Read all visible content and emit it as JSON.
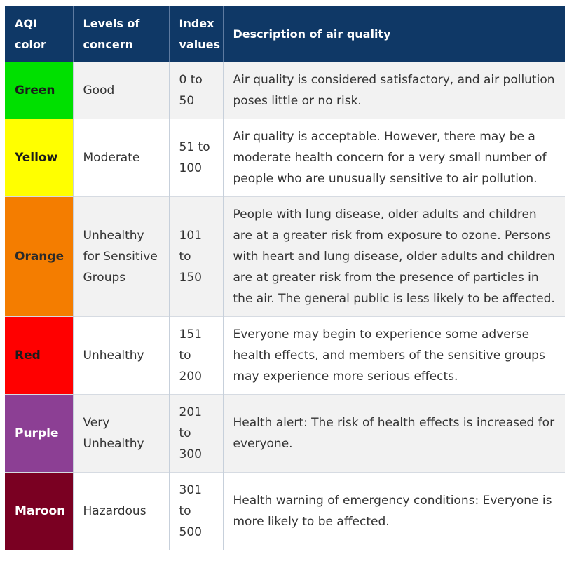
{
  "header": {
    "aqi_color": "AQI color",
    "levels": "Levels of concern",
    "index": "Index values",
    "description": "Description of air quality"
  },
  "rows": [
    {
      "color": "Green",
      "bg": "#00e000",
      "fg": "#1b1b1b",
      "level": "Good",
      "index": "0 to 50",
      "description": "Air quality is considered satisfactory, and air pollution poses little or no risk."
    },
    {
      "color": "Yellow",
      "bg": "#ffff00",
      "fg": "#1b1b1b",
      "level": "Moderate",
      "index": "51 to 100",
      "description": "Air quality is acceptable. However, there may be a moderate health concern for a very small number of people who are unusually sensitive to air pollution."
    },
    {
      "color": "Orange",
      "bg": "#f47d00",
      "fg": "#2a2a2a",
      "level": "Unhealthy for Sensitive Groups",
      "index": "101 to 150",
      "description": "People with lung disease, older adults and children are at a greater risk from exposure to ozone. Persons with heart and lung disease, older adults and children are at greater risk from the presence of particles in the air. The general public is less likely to be affected."
    },
    {
      "color": "Red",
      "bg": "#ff0000",
      "fg": "#1b1b1b",
      "level": "Unhealthy",
      "index": "151 to 200",
      "description": "Everyone may begin to experience some adverse health effects, and members of the sensitive groups may experience more serious effects."
    },
    {
      "color": "Purple",
      "bg": "#8c3f94",
      "fg": "#ffffff",
      "level": "Very Unhealthy",
      "index": "201 to 300",
      "description": "Health alert: The risk of health effects is increased for everyone."
    },
    {
      "color": "Maroon",
      "bg": "#7a0022",
      "fg": "#ffffff",
      "level": "Hazardous",
      "index": "301 to 500",
      "description": "Health warning of emergency conditions: Everyone is more likely to be affected."
    }
  ]
}
